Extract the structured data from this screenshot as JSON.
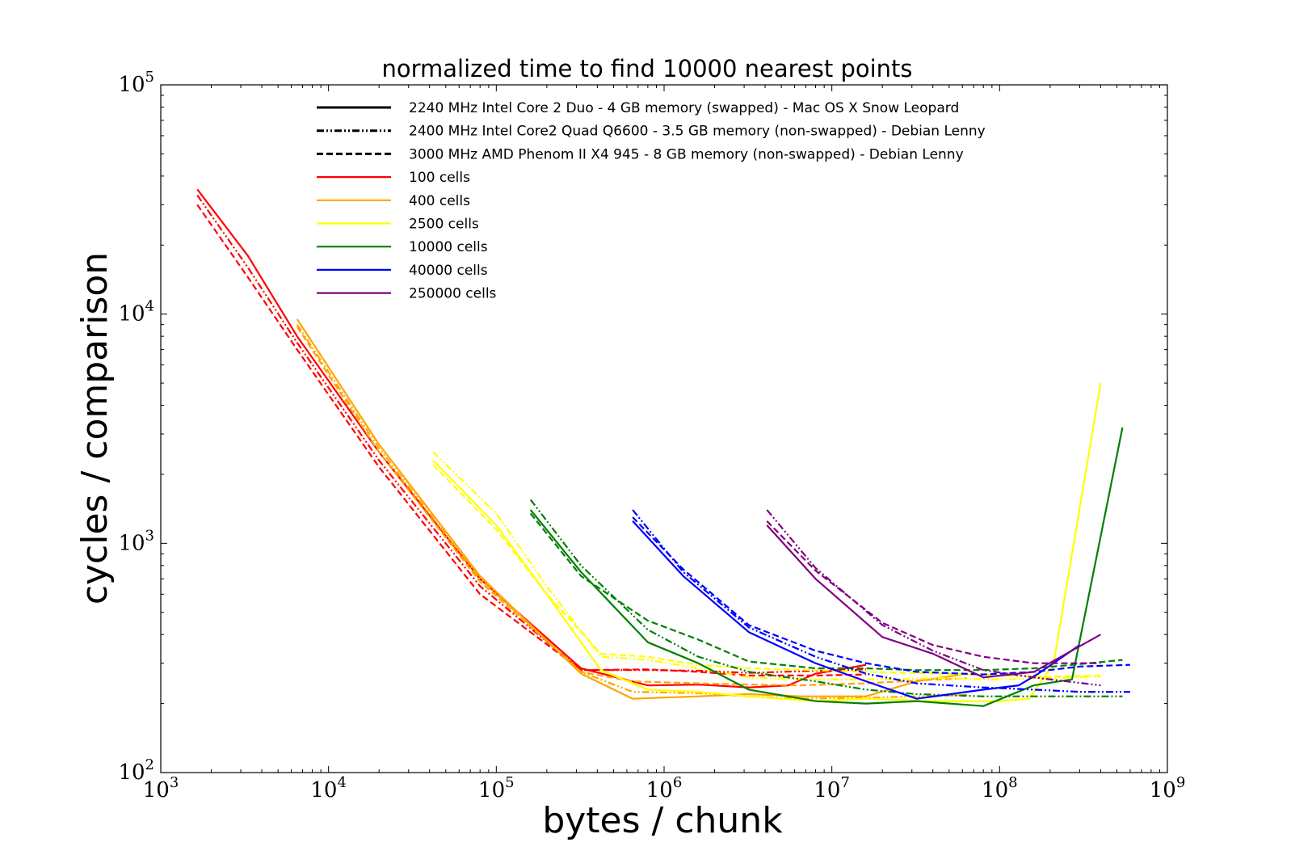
{
  "chart_data": {
    "type": "line",
    "title": "normalized time to find 10000 nearest points",
    "xlabel": "bytes / chunk",
    "ylabel": "cycles / comparison",
    "xscale": "log",
    "yscale": "log",
    "xlim": [
      1000,
      1000000000
    ],
    "ylim": [
      100,
      100000
    ],
    "grid": false,
    "legend_position": "top-left",
    "x_ticks": [
      {
        "value": 1000,
        "base": "10",
        "exp": "3"
      },
      {
        "value": 10000,
        "base": "10",
        "exp": "4"
      },
      {
        "value": 100000,
        "base": "10",
        "exp": "5"
      },
      {
        "value": 1000000,
        "base": "10",
        "exp": "6"
      },
      {
        "value": 10000000,
        "base": "10",
        "exp": "7"
      },
      {
        "value": 100000000,
        "base": "10",
        "exp": "8"
      },
      {
        "value": 1000000000,
        "base": "10",
        "exp": "9"
      }
    ],
    "y_ticks": [
      {
        "value": 100,
        "base": "10",
        "exp": "2"
      },
      {
        "value": 1000,
        "base": "10",
        "exp": "3"
      },
      {
        "value": 10000,
        "base": "10",
        "exp": "4"
      },
      {
        "value": 100000,
        "base": "10",
        "exp": "5"
      }
    ],
    "machines": [
      {
        "name": "2240 MHz Intel Core 2 Duo - 4 GB memory (swapped) - Mac OS X Snow Leopard",
        "style": "solid"
      },
      {
        "name": "2400 MHz Intel Core2 Quad Q6600 - 3.5 GB memory (non-swapped) - Debian Lenny",
        "style": "dashdot"
      },
      {
        "name": "3000 MHz AMD Phenom II X4 945 - 8 GB memory (non-swapped) - Debian Lenny",
        "style": "dashed"
      }
    ],
    "cell_groups": [
      {
        "name": "100 cells",
        "color": "#ff0000"
      },
      {
        "name": "400 cells",
        "color": "#ffa500"
      },
      {
        "name": "2500 cells",
        "color": "#ffff00"
      },
      {
        "name": "10000 cells",
        "color": "#008000"
      },
      {
        "name": "40000 cells",
        "color": "#0000ff"
      },
      {
        "name": "250000 cells",
        "color": "#800080"
      }
    ],
    "series": [
      {
        "cells": "100 cells",
        "machine": 0,
        "points": [
          [
            1650,
            35000
          ],
          [
            3300,
            18000
          ],
          [
            6500,
            8000
          ],
          [
            20000,
            2500
          ],
          [
            80000,
            700
          ],
          [
            320000,
            285
          ],
          [
            800000,
            240
          ],
          [
            1600000,
            242
          ],
          [
            3200000,
            235
          ],
          [
            5500000,
            240
          ],
          [
            8000000,
            270
          ],
          [
            16000000,
            295
          ]
        ]
      },
      {
        "cells": "100 cells",
        "machine": 1,
        "points": [
          [
            1650,
            33000
          ],
          [
            3300,
            16000
          ],
          [
            6500,
            7500
          ],
          [
            20000,
            2300
          ],
          [
            80000,
            650
          ],
          [
            320000,
            280
          ],
          [
            800000,
            280
          ],
          [
            1600000,
            278
          ],
          [
            3200000,
            272
          ],
          [
            8000000,
            278
          ],
          [
            16000000,
            282
          ]
        ]
      },
      {
        "cells": "100 cells",
        "machine": 2,
        "points": [
          [
            1650,
            30000
          ],
          [
            3300,
            14500
          ],
          [
            6500,
            7000
          ],
          [
            20000,
            2150
          ],
          [
            80000,
            600
          ],
          [
            320000,
            280
          ],
          [
            800000,
            282
          ],
          [
            1600000,
            275
          ],
          [
            3200000,
            265
          ],
          [
            8000000,
            265
          ],
          [
            16000000,
            268
          ]
        ]
      },
      {
        "cells": "400 cells",
        "machine": 0,
        "points": [
          [
            6500,
            9500
          ],
          [
            20000,
            2700
          ],
          [
            80000,
            720
          ],
          [
            320000,
            270
          ],
          [
            650000,
            210
          ],
          [
            1600000,
            215
          ],
          [
            3200000,
            220
          ],
          [
            6500000,
            215
          ],
          [
            16000000,
            215
          ],
          [
            32000000,
            250
          ],
          [
            64000000,
            270
          ]
        ]
      },
      {
        "cells": "400 cells",
        "machine": 1,
        "points": [
          [
            6500,
            9000
          ],
          [
            20000,
            2600
          ],
          [
            80000,
            700
          ],
          [
            320000,
            275
          ],
          [
            650000,
            225
          ],
          [
            1600000,
            222
          ],
          [
            3200000,
            215
          ],
          [
            6500000,
            210
          ],
          [
            16000000,
            212
          ],
          [
            32000000,
            215
          ],
          [
            64000000,
            218
          ]
        ]
      },
      {
        "cells": "400 cells",
        "machine": 2,
        "points": [
          [
            6500,
            8800
          ],
          [
            20000,
            2500
          ],
          [
            80000,
            680
          ],
          [
            320000,
            275
          ],
          [
            650000,
            250
          ],
          [
            1600000,
            245
          ],
          [
            3200000,
            242
          ],
          [
            6500000,
            240
          ],
          [
            16000000,
            245
          ],
          [
            32000000,
            252
          ],
          [
            64000000,
            258
          ]
        ]
      },
      {
        "cells": "2500 cells",
        "machine": 0,
        "points": [
          [
            42000,
            2300
          ],
          [
            100000,
            1200
          ],
          [
            200000,
            600
          ],
          [
            420000,
            280
          ],
          [
            800000,
            230
          ],
          [
            1600000,
            225
          ],
          [
            3200000,
            215
          ],
          [
            8000000,
            205
          ],
          [
            16000000,
            210
          ],
          [
            42000000,
            205
          ],
          [
            100000000,
            205
          ],
          [
            150000000,
            210
          ],
          [
            210000000,
            300
          ],
          [
            400000000,
            5000
          ]
        ]
      },
      {
        "cells": "2500 cells",
        "machine": 1,
        "points": [
          [
            42000,
            2500
          ],
          [
            100000,
            1350
          ],
          [
            200000,
            650
          ],
          [
            420000,
            320
          ],
          [
            800000,
            310
          ],
          [
            1600000,
            285
          ],
          [
            3200000,
            260
          ],
          [
            8000000,
            255
          ],
          [
            16000000,
            255
          ],
          [
            42000000,
            258
          ],
          [
            100000000,
            255
          ],
          [
            200000000,
            258
          ],
          [
            400000000,
            262
          ]
        ]
      },
      {
        "cells": "2500 cells",
        "machine": 2,
        "points": [
          [
            42000,
            2200
          ],
          [
            100000,
            1150
          ],
          [
            200000,
            600
          ],
          [
            420000,
            330
          ],
          [
            800000,
            320
          ],
          [
            1600000,
            295
          ],
          [
            3200000,
            285
          ],
          [
            8000000,
            280
          ],
          [
            16000000,
            275
          ],
          [
            42000000,
            270
          ],
          [
            100000000,
            265
          ],
          [
            200000000,
            262
          ],
          [
            400000000,
            265
          ]
        ]
      },
      {
        "cells": "10000 cells",
        "machine": 0,
        "points": [
          [
            160000,
            1400
          ],
          [
            320000,
            750
          ],
          [
            800000,
            370
          ],
          [
            1600000,
            300
          ],
          [
            3200000,
            230
          ],
          [
            8000000,
            205
          ],
          [
            16000000,
            200
          ],
          [
            32000000,
            205
          ],
          [
            80000000,
            195
          ],
          [
            160000000,
            240
          ],
          [
            270000000,
            255
          ],
          [
            540000000,
            3200
          ]
        ]
      },
      {
        "cells": "10000 cells",
        "machine": 1,
        "points": [
          [
            160000,
            1550
          ],
          [
            320000,
            800
          ],
          [
            800000,
            420
          ],
          [
            1600000,
            320
          ],
          [
            3200000,
            275
          ],
          [
            8000000,
            250
          ],
          [
            16000000,
            230
          ],
          [
            32000000,
            220
          ],
          [
            80000000,
            215
          ],
          [
            160000000,
            215
          ],
          [
            270000000,
            215
          ],
          [
            540000000,
            215
          ]
        ]
      },
      {
        "cells": "10000 cells",
        "machine": 2,
        "points": [
          [
            160000,
            1350
          ],
          [
            320000,
            720
          ],
          [
            800000,
            460
          ],
          [
            1600000,
            380
          ],
          [
            3200000,
            305
          ],
          [
            8000000,
            285
          ],
          [
            16000000,
            285
          ],
          [
            32000000,
            280
          ],
          [
            80000000,
            280
          ],
          [
            160000000,
            285
          ],
          [
            270000000,
            295
          ],
          [
            540000000,
            310
          ]
        ]
      },
      {
        "cells": "40000 cells",
        "machine": 0,
        "points": [
          [
            650000,
            1250
          ],
          [
            1300000,
            720
          ],
          [
            3200000,
            410
          ],
          [
            8000000,
            300
          ],
          [
            16000000,
            250
          ],
          [
            32000000,
            210
          ],
          [
            80000000,
            230
          ],
          [
            130000000,
            240
          ],
          [
            170000000,
            270
          ],
          [
            300000000,
            360
          ]
        ]
      },
      {
        "cells": "40000 cells",
        "machine": 1,
        "points": [
          [
            650000,
            1400
          ],
          [
            1300000,
            750
          ],
          [
            3200000,
            430
          ],
          [
            8000000,
            320
          ],
          [
            16000000,
            270
          ],
          [
            32000000,
            245
          ],
          [
            80000000,
            235
          ],
          [
            160000000,
            230
          ],
          [
            300000000,
            225
          ],
          [
            600000000,
            225
          ]
        ]
      },
      {
        "cells": "40000 cells",
        "machine": 2,
        "points": [
          [
            650000,
            1300
          ],
          [
            1300000,
            770
          ],
          [
            3200000,
            440
          ],
          [
            8000000,
            340
          ],
          [
            16000000,
            300
          ],
          [
            32000000,
            275
          ],
          [
            80000000,
            268
          ],
          [
            160000000,
            275
          ],
          [
            300000000,
            290
          ],
          [
            600000000,
            295
          ]
        ]
      },
      {
        "cells": "250000 cells",
        "machine": 0,
        "points": [
          [
            4100000,
            1200
          ],
          [
            8000000,
            700
          ],
          [
            20000000,
            390
          ],
          [
            40000000,
            330
          ],
          [
            80000000,
            260
          ],
          [
            160000000,
            275
          ],
          [
            400000000,
            400
          ]
        ]
      },
      {
        "cells": "250000 cells",
        "machine": 1,
        "points": [
          [
            4100000,
            1400
          ],
          [
            8000000,
            780
          ],
          [
            20000000,
            440
          ],
          [
            40000000,
            340
          ],
          [
            80000000,
            280
          ],
          [
            160000000,
            260
          ],
          [
            400000000,
            240
          ]
        ]
      },
      {
        "cells": "250000 cells",
        "machine": 2,
        "points": [
          [
            4100000,
            1250
          ],
          [
            8000000,
            760
          ],
          [
            20000000,
            450
          ],
          [
            40000000,
            360
          ],
          [
            80000000,
            320
          ],
          [
            160000000,
            300
          ],
          [
            400000000,
            300
          ]
        ]
      }
    ]
  }
}
